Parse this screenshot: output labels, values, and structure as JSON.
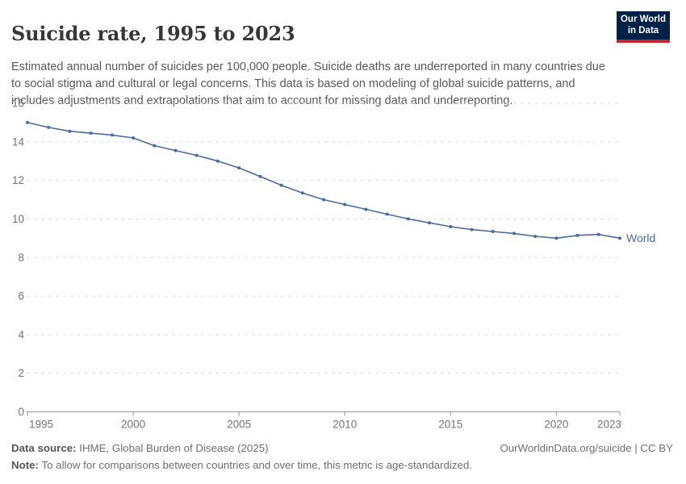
{
  "header": {
    "title": "Suicide rate, 1995 to 2023",
    "subtitle": "Estimated annual number of suicides per 100,000 people. Suicide deaths are underreported in many countries due to social stigma and cultural or legal concerns. This data is based on modeling of global suicide patterns, and includes adjustments and extrapolations that aim to account for missing data and underreporting.",
    "logo": {
      "line1": "Our World",
      "line2": "in Data",
      "bg_color": "#002147",
      "bar_color": "#c5282a",
      "text_color": "#ffffff"
    }
  },
  "chart_data": {
    "type": "line",
    "title": "Suicide rate, 1995 to 2023",
    "xlabel": "",
    "ylabel": "",
    "x": [
      1995,
      1996,
      1997,
      1998,
      1999,
      2000,
      2001,
      2002,
      2003,
      2004,
      2005,
      2006,
      2007,
      2008,
      2009,
      2010,
      2011,
      2012,
      2013,
      2014,
      2015,
      2016,
      2017,
      2018,
      2019,
      2020,
      2021,
      2022,
      2023
    ],
    "series": [
      {
        "name": "World",
        "color": "#4c6a9c",
        "values": [
          15.0,
          14.75,
          14.55,
          14.45,
          14.35,
          14.2,
          13.8,
          13.55,
          13.3,
          13.0,
          12.65,
          12.2,
          11.75,
          11.35,
          11.0,
          10.75,
          10.5,
          10.25,
          10.0,
          9.8,
          9.6,
          9.45,
          9.35,
          9.25,
          9.1,
          9.0,
          9.15,
          9.2,
          9.0
        ]
      }
    ],
    "ylim": [
      0,
      16
    ],
    "yticks": [
      0,
      2,
      4,
      6,
      8,
      10,
      12,
      14,
      16
    ],
    "xticks": [
      1995,
      2000,
      2005,
      2010,
      2015,
      2020,
      2023
    ],
    "grid": "horizontal-dashed",
    "legend": "end-of-line-label",
    "colors": {
      "grid": "#dcdcdc",
      "axis": "#999999",
      "tick_label": "#737373"
    }
  },
  "footer": {
    "source_label": "Data source:",
    "source_text": " IHME, Global Burden of Disease (2025)",
    "note_label": "Note:",
    "note_text": " To allow for comparisons between countries and over time, this metric is age-standardized.",
    "link": "OurWorldinData.org/suicide | CC BY"
  }
}
